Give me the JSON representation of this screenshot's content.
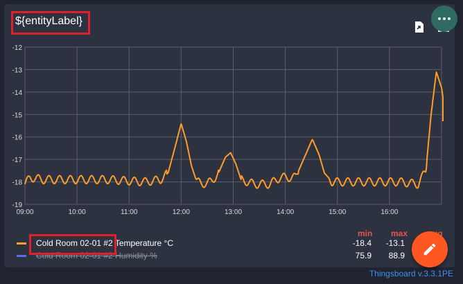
{
  "widget": {
    "title": "${entityLabel}",
    "more_icon": "more-horiz-icon",
    "export_icon": "file-export-icon",
    "fullscreen_icon": "fullscreen-icon"
  },
  "legend": {
    "headers": [
      "min",
      "max",
      "avg"
    ],
    "items": [
      {
        "name": "Cold Room 02-01 #2",
        "label": "Cold Room 02-01 #2 Temperature °C",
        "color": "#ff9c2a",
        "min": "-18.4",
        "max": "-13.1",
        "avg": "",
        "hidden": false
      },
      {
        "name": "Cold Room 02-01 #2",
        "label": "Cold Room 02-01 #2 Humidity %",
        "color": "#5b6cf0",
        "min": "75.9",
        "max": "88.9",
        "avg": "",
        "hidden": true
      }
    ]
  },
  "fab": {
    "icon": "edit-pencil-icon",
    "color": "#ff5722"
  },
  "footer": {
    "text": "Thingsboard v.3.3.1PE"
  },
  "chart_data": {
    "type": "line",
    "x_ticks": [
      "09:00",
      "10:00",
      "11:00",
      "12:00",
      "13:00",
      "14:00",
      "15:00",
      "16:00"
    ],
    "y_ticks": [
      "-12",
      "-13",
      "-14",
      "-15",
      "-16",
      "-17",
      "-18",
      "-19"
    ],
    "ylim": [
      -19,
      -12
    ],
    "grid": true,
    "series": [
      {
        "name": "Cold Room 02-01 #2 Temperature °C",
        "color": "#ff9c2a",
        "anchors": [
          [
            9.0,
            -18.1
          ],
          [
            9.1,
            -17.8
          ],
          [
            9.35,
            -17.9
          ],
          [
            9.9,
            -17.9
          ],
          [
            10.6,
            -17.9
          ],
          [
            11.3,
            -18.0
          ],
          [
            11.6,
            -17.9
          ],
          [
            11.75,
            -17.6
          ],
          [
            11.9,
            -16.3
          ],
          [
            12.0,
            -15.4
          ],
          [
            12.1,
            -16.2
          ],
          [
            12.2,
            -17.3
          ],
          [
            12.3,
            -18.0
          ],
          [
            12.5,
            -18.1
          ],
          [
            12.7,
            -17.7
          ],
          [
            12.85,
            -16.9
          ],
          [
            12.95,
            -16.7
          ],
          [
            13.05,
            -17.2
          ],
          [
            13.15,
            -17.9
          ],
          [
            13.4,
            -18.1
          ],
          [
            13.7,
            -18.1
          ],
          [
            13.9,
            -17.8
          ],
          [
            14.2,
            -17.8
          ],
          [
            14.35,
            -17.0
          ],
          [
            14.52,
            -16.1
          ],
          [
            14.65,
            -16.8
          ],
          [
            14.75,
            -17.6
          ],
          [
            14.9,
            -18.0
          ],
          [
            15.5,
            -18.0
          ],
          [
            16.0,
            -18.0
          ],
          [
            16.2,
            -18.0
          ],
          [
            16.55,
            -18.1
          ],
          [
            16.7,
            -17.5
          ],
          [
            16.8,
            -15.0
          ],
          [
            16.9,
            -13.1
          ],
          [
            17.0,
            -13.8
          ],
          [
            17.1,
            -15.3
          ]
        ]
      }
    ]
  }
}
